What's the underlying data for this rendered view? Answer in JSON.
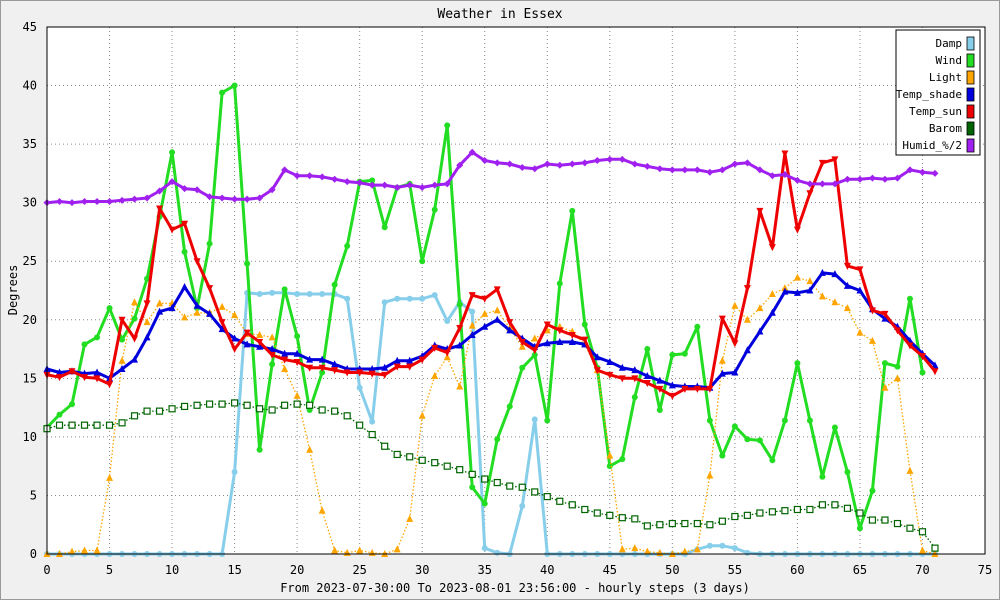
{
  "chart_data": {
    "type": "line",
    "title": "Weather in Essex",
    "xlabel": "From 2023-07-30:00 To 2023-08-01 23:56:00 - hourly steps (3 days)",
    "ylabel": "Degrees",
    "xlim": [
      0,
      75
    ],
    "ylim": [
      0,
      45
    ],
    "xticks": [
      0,
      5,
      10,
      15,
      20,
      25,
      30,
      35,
      40,
      45,
      50,
      55,
      60,
      65,
      70,
      75
    ],
    "yticks": [
      0,
      5,
      10,
      15,
      20,
      25,
      30,
      35,
      40,
      45
    ],
    "grid": true,
    "legend_position": "top-right",
    "series": [
      {
        "name": "Damp",
        "color": "#87ceeb",
        "marker": "circle",
        "line": "solid",
        "values": [
          0,
          0,
          0,
          0,
          0,
          0,
          0,
          0,
          0,
          0,
          0,
          0,
          0,
          0,
          0,
          7,
          22.3,
          22.2,
          22.3,
          22.3,
          22.2,
          22.2,
          22.2,
          22.2,
          21.8,
          14.2,
          11.3,
          21.5,
          21.8,
          21.8,
          21.8,
          22.1,
          19.9,
          21.5,
          20.7,
          0.5,
          0.1,
          0,
          4.1,
          11.5,
          0,
          0,
          0,
          0,
          0,
          0,
          0,
          0,
          0,
          0,
          0,
          0,
          0.4,
          0.7,
          0.7,
          0.5,
          0.1,
          0,
          0,
          0,
          0,
          0,
          0,
          0,
          0,
          0,
          0,
          0,
          0,
          0,
          0,
          0
        ]
      },
      {
        "name": "Wind",
        "color": "#22dd22",
        "marker": "circle",
        "line": "solid",
        "values": [
          10.8,
          11.9,
          12.8,
          17.9,
          18.5,
          21,
          18.3,
          20.1,
          23.5,
          28.8,
          34.3,
          25.8,
          21,
          26.5,
          39.4,
          40,
          24.8,
          8.9,
          16.2,
          22.6,
          18.6,
          12.3,
          15.5,
          23,
          26.3,
          31.8,
          31.9,
          27.9,
          31.3,
          31.6,
          25,
          29.4,
          36.6,
          21.3,
          5.7,
          4.3,
          9.8,
          12.6,
          15.9,
          17,
          11.4,
          23.1,
          29.3,
          19.6,
          15.9,
          7.5,
          8.1,
          13.4,
          17.5,
          12.3,
          17,
          17.1,
          19.4,
          11.4,
          8.4,
          10.9,
          9.8,
          9.7,
          8,
          11.4,
          16.3,
          11.4,
          6.6,
          10.8,
          7,
          2.2,
          5.4,
          16.3,
          16,
          21.8,
          15.5
        ]
      },
      {
        "name": "Light",
        "color": "#ffa500",
        "marker": "triangle",
        "line": "dotted",
        "values": [
          0,
          0,
          0.2,
          0.3,
          0.3,
          6.5,
          16.5,
          21.5,
          19.8,
          21.4,
          21.4,
          20.2,
          20.6,
          20.6,
          21.1,
          20.4,
          18.8,
          18.7,
          18.5,
          15.8,
          13.5,
          8.9,
          3.7,
          0.3,
          0.1,
          0.3,
          0.1,
          0,
          0.4,
          3,
          11.8,
          15.2,
          16.8,
          14.3,
          19.5,
          20.5,
          20.8,
          19.3,
          17.7,
          18.4,
          19.1,
          19.4,
          19,
          17.9,
          15.7,
          8.4,
          0.4,
          0.5,
          0.2,
          0.1,
          0,
          0.2,
          0.4,
          6.7,
          16.5,
          21.2,
          20,
          21,
          22.2,
          22.7,
          23.6,
          23.3,
          22,
          21.5,
          21,
          18.9,
          18.2,
          14.2,
          15,
          7.1,
          0.3,
          0
        ]
      },
      {
        "name": "Temp_shade",
        "color": "#0000dd",
        "marker": "triangle",
        "line": "solid",
        "values": [
          15.8,
          15.5,
          15.6,
          15.4,
          15.5,
          15,
          15.8,
          16.6,
          18.5,
          20.7,
          21,
          22.8,
          21.2,
          20.5,
          19.2,
          18.4,
          17.9,
          17.7,
          17.5,
          17.1,
          17.1,
          16.6,
          16.6,
          16.2,
          15.8,
          15.8,
          15.8,
          15.9,
          16.5,
          16.5,
          16.9,
          17.8,
          17.5,
          17.8,
          18.7,
          19.4,
          20,
          19.1,
          18.4,
          17.7,
          18,
          18.1,
          18.1,
          17.9,
          16.8,
          16.4,
          15.9,
          15.7,
          15.2,
          14.8,
          14.4,
          14.3,
          14.3,
          14.2,
          15.4,
          15.5,
          17.4,
          19,
          20.6,
          22.4,
          22.3,
          22.5,
          24,
          23.9,
          22.9,
          22.5,
          20.9,
          20.1,
          19.4,
          18.2,
          17.1,
          16.1
        ]
      },
      {
        "name": "Temp_sun",
        "color": "#ee0000",
        "marker": "triangle-down",
        "line": "solid",
        "values": [
          15.3,
          15.1,
          15.6,
          15.1,
          15,
          14.5,
          20,
          18.4,
          21.4,
          29.5,
          27.7,
          28.2,
          25,
          22.7,
          19.8,
          17.5,
          18.9,
          18.1,
          17,
          16.6,
          16.4,
          15.9,
          15.9,
          15.7,
          15.5,
          15.5,
          15.4,
          15.3,
          16,
          16,
          16.6,
          17.6,
          17.2,
          19.3,
          22.1,
          21.8,
          22.6,
          19.8,
          18.1,
          17.4,
          19.6,
          19.1,
          18.7,
          18.3,
          15.7,
          15.3,
          15,
          15,
          14.6,
          14.1,
          13.5,
          14.1,
          14.1,
          14.1,
          20.1,
          18,
          22.7,
          29.3,
          26.2,
          34.2,
          27.7,
          30.8,
          33.4,
          33.7,
          24.6,
          24.3,
          20.8,
          20.5,
          19.1,
          17.8,
          16.9,
          15.6
        ]
      },
      {
        "name": "Barom",
        "color": "#006400",
        "marker": "square",
        "line": "dotted",
        "values": [
          10.7,
          11,
          11,
          11,
          11,
          11,
          11.2,
          11.8,
          12.2,
          12.2,
          12.4,
          12.6,
          12.7,
          12.8,
          12.8,
          12.9,
          12.7,
          12.4,
          12.3,
          12.7,
          12.8,
          12.7,
          12.3,
          12.2,
          11.8,
          11,
          10.2,
          9.2,
          8.5,
          8.3,
          8,
          7.8,
          7.5,
          7.2,
          6.8,
          6.4,
          6.1,
          5.8,
          5.7,
          5.3,
          4.9,
          4.5,
          4.2,
          3.8,
          3.5,
          3.3,
          3.1,
          3,
          2.4,
          2.5,
          2.6,
          2.6,
          2.6,
          2.5,
          2.8,
          3.2,
          3.3,
          3.5,
          3.6,
          3.7,
          3.8,
          3.8,
          4.2,
          4.2,
          3.9,
          3.5,
          2.9,
          2.9,
          2.6,
          2.2,
          1.9,
          0.5
        ]
      },
      {
        "name": "Humid_%/2",
        "color": "#a020f0",
        "marker": "diamond",
        "line": "solid",
        "values": [
          30,
          30.1,
          30,
          30.1,
          30.1,
          30.1,
          30.2,
          30.3,
          30.4,
          31,
          31.8,
          31.2,
          31.1,
          30.5,
          30.4,
          30.3,
          30.3,
          30.4,
          31.1,
          32.8,
          32.3,
          32.3,
          32.2,
          32,
          31.8,
          31.7,
          31.5,
          31.5,
          31.3,
          31.5,
          31.3,
          31.5,
          31.6,
          33.2,
          34.3,
          33.6,
          33.4,
          33.3,
          33,
          32.9,
          33.3,
          33.2,
          33.3,
          33.4,
          33.6,
          33.7,
          33.7,
          33.3,
          33.1,
          32.9,
          32.8,
          32.8,
          32.8,
          32.6,
          32.8,
          33.3,
          33.4,
          32.8,
          32.3,
          32.4,
          31.9,
          31.6,
          31.6,
          31.6,
          32,
          32,
          32.1,
          32,
          32.1,
          32.8,
          32.6,
          32.5
        ]
      }
    ]
  }
}
